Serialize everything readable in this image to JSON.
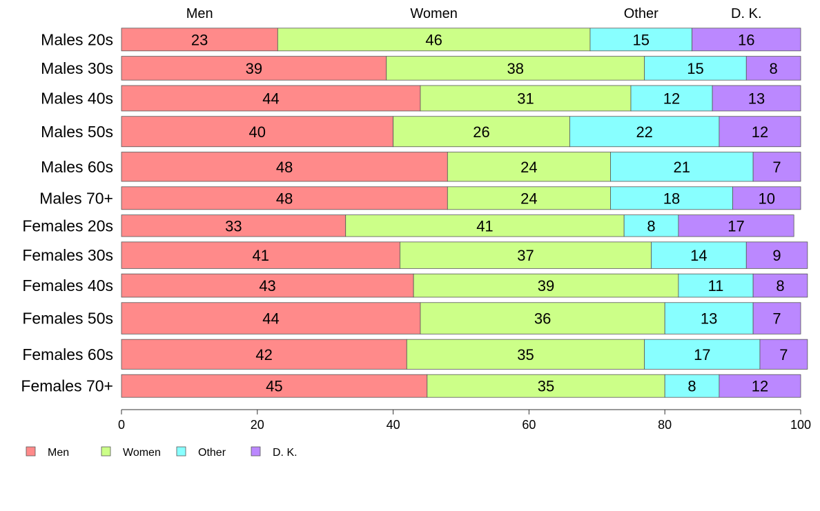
{
  "chart_data": {
    "type": "bar",
    "orientation": "horizontal",
    "stacked": true,
    "categories": [
      "Males 20s",
      "Males 30s",
      "Males 40s",
      "Males 50s",
      "Males 60s",
      "Males 70+",
      "Females 20s",
      "Females 30s",
      "Females 40s",
      "Females 50s",
      "Females 60s",
      "Females 70+"
    ],
    "relative_bar_widths": [
      0.42,
      0.44,
      0.47,
      0.56,
      0.54,
      0.42,
      0.4,
      0.49,
      0.43,
      0.58,
      0.55,
      0.42
    ],
    "series": [
      {
        "name": "Men",
        "color": "#ff8a8a",
        "values": [
          23,
          39,
          44,
          40,
          48,
          48,
          33,
          41,
          43,
          44,
          42,
          45
        ]
      },
      {
        "name": "Women",
        "color": "#ccff88",
        "values": [
          46,
          38,
          31,
          26,
          24,
          24,
          41,
          37,
          39,
          36,
          35,
          35
        ]
      },
      {
        "name": "Other",
        "color": "#88ffff",
        "values": [
          15,
          15,
          12,
          22,
          21,
          18,
          8,
          14,
          11,
          13,
          17,
          8
        ]
      },
      {
        "name": "D. K.",
        "color": "#bb88ff",
        "values": [
          16,
          8,
          13,
          12,
          7,
          10,
          17,
          9,
          8,
          7,
          7,
          12
        ]
      }
    ],
    "top_labels": [
      "Men",
      "Women",
      "Other",
      "D. K."
    ],
    "xlim": [
      0,
      100
    ],
    "xticks": [
      "0",
      "20",
      "40",
      "60",
      "80",
      "100"
    ],
    "grid": false,
    "legend_position": "bottom-left"
  },
  "legend": {
    "items": [
      {
        "label": "Men",
        "color": "#ff8a8a"
      },
      {
        "label": "Women",
        "color": "#ccff88"
      },
      {
        "label": "Other",
        "color": "#88ffff"
      },
      {
        "label": "D. K.",
        "color": "#bb88ff"
      }
    ]
  }
}
